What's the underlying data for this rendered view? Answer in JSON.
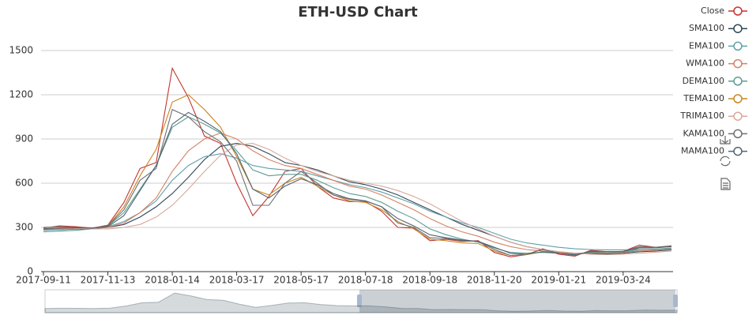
{
  "chart_data": {
    "type": "line",
    "title": "ETH-USD Chart",
    "categories": [
      "2017-09-11",
      null,
      null,
      null,
      "2017-11-13",
      null,
      null,
      null,
      "2018-01-14",
      null,
      null,
      null,
      "2018-03-17",
      null,
      null,
      null,
      "2018-05-17",
      null,
      null,
      null,
      "2018-07-18",
      null,
      null,
      null,
      "2018-09-18",
      null,
      null,
      null,
      "2018-11-20",
      null,
      null,
      null,
      "2019-01-21",
      null,
      null,
      null,
      "2019-03-24",
      null,
      null,
      null
    ],
    "ylim": [
      0,
      1500
    ],
    "yticks": [
      0,
      300,
      600,
      900,
      1200,
      1500
    ],
    "grid": true,
    "legend": "right",
    "series": [
      {
        "name": "Close",
        "color": "#c23531",
        "values": [
          295,
          310,
          305,
          295,
          315,
          470,
          700,
          740,
          1380,
          1180,
          920,
          870,
          600,
          380,
          510,
          680,
          700,
          580,
          500,
          475,
          475,
          410,
          300,
          295,
          210,
          220,
          205,
          210,
          130,
          100,
          115,
          155,
          118,
          105,
          145,
          135,
          137,
          180,
          165,
          175
        ]
      },
      {
        "name": "SMA100",
        "color": "#2f4554",
        "values": [
          290,
          285,
          288,
          292,
          300,
          320,
          370,
          440,
          530,
          640,
          760,
          850,
          870,
          850,
          800,
          740,
          720,
          690,
          650,
          610,
          590,
          560,
          520,
          470,
          420,
          370,
          320,
          280,
          240,
          200,
          170,
          150,
          135,
          125,
          120,
          120,
          125,
          135,
          140,
          148
        ]
      },
      {
        "name": "EMA100",
        "color": "#61a0a8",
        "values": [
          280,
          285,
          290,
          295,
          305,
          340,
          400,
          480,
          620,
          720,
          780,
          800,
          770,
          720,
          700,
          690,
          680,
          650,
          620,
          590,
          570,
          540,
          500,
          460,
          410,
          370,
          330,
          300,
          260,
          220,
          195,
          180,
          165,
          155,
          150,
          148,
          148,
          150,
          152,
          155
        ]
      },
      {
        "name": "WMA100",
        "color": "#d48265",
        "values": [
          285,
          290,
          292,
          295,
          300,
          330,
          400,
          500,
          680,
          820,
          900,
          940,
          900,
          820,
          760,
          720,
          700,
          660,
          620,
          580,
          560,
          520,
          470,
          420,
          360,
          310,
          270,
          240,
          200,
          170,
          150,
          140,
          130,
          125,
          125,
          128,
          132,
          140,
          145,
          152
        ]
      },
      {
        "name": "DEMA100",
        "color": "#5c9c94",
        "values": [
          270,
          275,
          280,
          290,
          310,
          400,
          560,
          720,
          980,
          1050,
          1000,
          940,
          820,
          690,
          650,
          660,
          660,
          620,
          570,
          530,
          510,
          470,
          410,
          360,
          290,
          250,
          220,
          200,
          160,
          130,
          125,
          130,
          125,
          120,
          128,
          130,
          135,
          148,
          152,
          160
        ]
      },
      {
        "name": "TEMA100",
        "color": "#ca8622",
        "values": [
          290,
          300,
          300,
          295,
          310,
          440,
          650,
          830,
          1150,
          1200,
          1100,
          980,
          780,
          560,
          520,
          600,
          640,
          580,
          520,
          480,
          470,
          420,
          340,
          290,
          220,
          210,
          195,
          190,
          140,
          110,
          115,
          135,
          125,
          112,
          135,
          133,
          138,
          165,
          163,
          172
        ]
      },
      {
        "name": "TRIMA100",
        "color": "#d8a89a",
        "values": [
          300,
          298,
          295,
          290,
          290,
          300,
          320,
          370,
          450,
          560,
          680,
          790,
          860,
          870,
          830,
          770,
          720,
          680,
          650,
          620,
          600,
          580,
          550,
          510,
          460,
          400,
          340,
          290,
          240,
          200,
          170,
          150,
          135,
          125,
          118,
          115,
          118,
          125,
          132,
          140
        ]
      },
      {
        "name": "KAMA100",
        "color": "#6e7074",
        "values": [
          300,
          305,
          300,
          295,
          310,
          420,
          620,
          700,
          1100,
          1050,
          950,
          880,
          750,
          450,
          450,
          600,
          680,
          600,
          520,
          490,
          480,
          440,
          330,
          300,
          230,
          225,
          210,
          205,
          150,
          110,
          118,
          150,
          125,
          110,
          140,
          135,
          137,
          170,
          165,
          172
        ]
      },
      {
        "name": "MAMA100",
        "color": "#546570",
        "values": [
          290,
          295,
          298,
          295,
          305,
          380,
          550,
          720,
          1000,
          1080,
          1020,
          950,
          800,
          560,
          500,
          580,
          630,
          590,
          530,
          495,
          480,
          440,
          360,
          310,
          250,
          230,
          215,
          205,
          165,
          125,
          118,
          135,
          125,
          115,
          135,
          135,
          137,
          160,
          162,
          170
        ]
      }
    ]
  }
}
